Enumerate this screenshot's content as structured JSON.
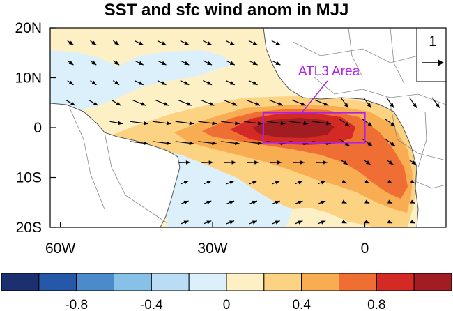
{
  "title": "SST and sfc wind anom in MJJ",
  "map": {
    "lat_labels": [
      "20N",
      "10N",
      "0",
      "10S",
      "20S"
    ],
    "lon_labels": [
      "60W",
      "30W",
      "0"
    ],
    "lat_range": [
      -20,
      20
    ],
    "lon_range": [
      -62,
      16
    ],
    "region_box": {
      "label": "ATL3 Area",
      "lon_range": [
        -20,
        0
      ],
      "lat_range": [
        -3,
        3
      ],
      "color": "#b020e8"
    },
    "reference_vector": {
      "label": "1"
    },
    "land_color": "#ffffff",
    "coast_color": "#555555"
  },
  "colorbar": {
    "colors": [
      "#1c2f6e",
      "#2558a8",
      "#4b8acb",
      "#88c1e8",
      "#b8ddf5",
      "#dcf0fb",
      "#fcf0c4",
      "#fcd383",
      "#f8ad52",
      "#ef6e33",
      "#d42a25",
      "#a11d22"
    ],
    "levels": [
      -1.0,
      -0.8,
      -0.6,
      -0.4,
      -0.2,
      0,
      0.2,
      0.4,
      0.6,
      0.8,
      1.0
    ],
    "tick_labels": [
      "-0.8",
      "-0.4",
      "0",
      "0.4",
      "0.8"
    ]
  },
  "colors": {
    "warm1": "#fcf0c4",
    "warm2": "#fcd383",
    "warm3": "#f8ad52",
    "warm4": "#ef6e33",
    "warm5": "#d42a25",
    "warm6": "#a11d22",
    "cool1": "#dcf0fb"
  }
}
